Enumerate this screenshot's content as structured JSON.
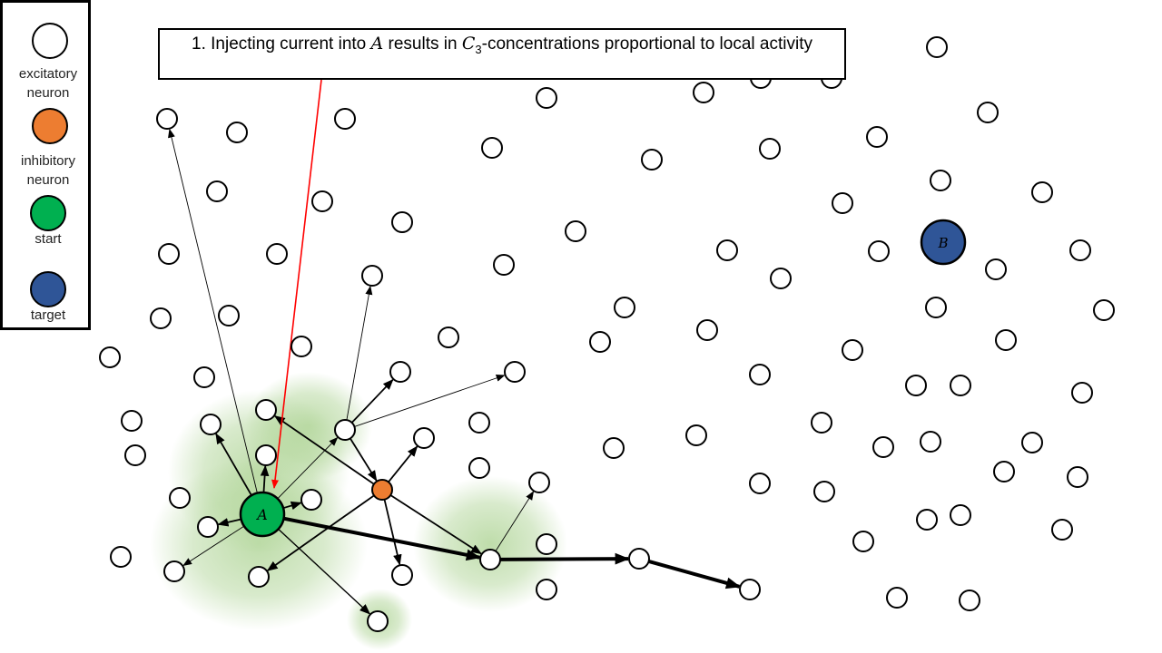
{
  "legend": {
    "items": [
      {
        "label": "excitatory\nneuron",
        "color": "#ffffff"
      },
      {
        "label": "inhibitory\nneuron",
        "color": "#ed7d31"
      },
      {
        "label": "start",
        "color": "#00b050"
      },
      {
        "label": "target",
        "color": "#2f5597"
      }
    ]
  },
  "callout": {
    "prefix": "1. Injecting current into ",
    "var_a": "A",
    "middle": " results in ",
    "var_c": "C",
    "sub": "3",
    "suffix": "-concentrations proportional to local activity"
  },
  "labels": {
    "start": "A",
    "target": "B"
  },
  "colors": {
    "excitatory": "#ffffff",
    "inhibitory": "#ed7d31",
    "start": "#00b050",
    "target": "#2f5597",
    "glow": "#a9d18e",
    "injection": "#ff0000"
  }
}
